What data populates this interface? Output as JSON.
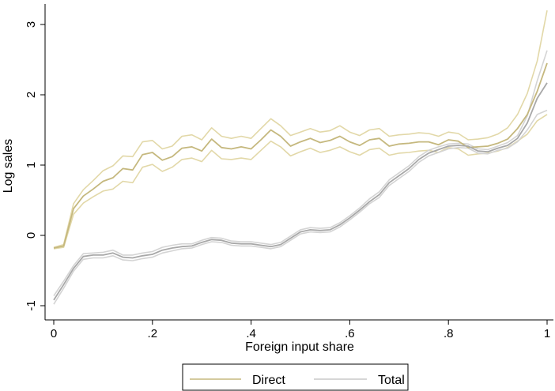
{
  "chart_data": {
    "type": "line",
    "title": "",
    "xlabel": "Foreign input share",
    "ylabel": "Log sales",
    "xlim": [
      0,
      1
    ],
    "ylim": [
      -1.15,
      3.3
    ],
    "grid": false,
    "legend_position": "bottom",
    "x_ticks": [
      {
        "value": 0,
        "label": "0"
      },
      {
        "value": 0.2,
        "label": ".2"
      },
      {
        "value": 0.4,
        "label": ".4"
      },
      {
        "value": 0.6,
        "label": ".6"
      },
      {
        "value": 0.8,
        "label": ".8"
      },
      {
        "value": 1,
        "label": "1"
      }
    ],
    "y_ticks": [
      {
        "value": -1,
        "label": "-1"
      },
      {
        "value": 0,
        "label": "0"
      },
      {
        "value": 1,
        "label": "1"
      },
      {
        "value": 2,
        "label": "2"
      },
      {
        "value": 3,
        "label": "3"
      }
    ],
    "x": [
      0,
      0.02,
      0.04,
      0.06,
      0.08,
      0.1,
      0.12,
      0.14,
      0.16,
      0.18,
      0.2,
      0.22,
      0.24,
      0.26,
      0.28,
      0.3,
      0.32,
      0.34,
      0.36,
      0.38,
      0.4,
      0.42,
      0.44,
      0.46,
      0.48,
      0.5,
      0.52,
      0.54,
      0.56,
      0.58,
      0.6,
      0.62,
      0.64,
      0.66,
      0.68,
      0.7,
      0.72,
      0.74,
      0.76,
      0.78,
      0.8,
      0.82,
      0.84,
      0.86,
      0.88,
      0.9,
      0.92,
      0.94,
      0.96,
      0.98,
      1.0
    ],
    "series": [
      {
        "name": "Direct",
        "color": "#c5b87e",
        "band_color": "#e2d8a8",
        "values": [
          -0.18,
          -0.15,
          0.38,
          0.56,
          0.66,
          0.77,
          0.82,
          0.95,
          0.93,
          1.15,
          1.18,
          1.07,
          1.12,
          1.24,
          1.26,
          1.2,
          1.37,
          1.25,
          1.23,
          1.26,
          1.23,
          1.36,
          1.5,
          1.41,
          1.27,
          1.33,
          1.38,
          1.32,
          1.35,
          1.41,
          1.33,
          1.28,
          1.36,
          1.38,
          1.27,
          1.3,
          1.31,
          1.33,
          1.33,
          1.29,
          1.36,
          1.34,
          1.25,
          1.26,
          1.27,
          1.31,
          1.37,
          1.52,
          1.72,
          2.05,
          2.45
        ],
        "upper": [
          -0.17,
          -0.13,
          0.45,
          0.65,
          0.78,
          0.92,
          0.99,
          1.13,
          1.12,
          1.33,
          1.35,
          1.23,
          1.27,
          1.41,
          1.43,
          1.36,
          1.53,
          1.41,
          1.38,
          1.41,
          1.38,
          1.52,
          1.66,
          1.56,
          1.42,
          1.47,
          1.52,
          1.47,
          1.49,
          1.56,
          1.47,
          1.42,
          1.5,
          1.52,
          1.41,
          1.43,
          1.44,
          1.46,
          1.45,
          1.41,
          1.47,
          1.45,
          1.36,
          1.37,
          1.39,
          1.44,
          1.53,
          1.72,
          2.02,
          2.48,
          3.2
        ],
        "lower": [
          -0.19,
          -0.17,
          0.3,
          0.46,
          0.55,
          0.63,
          0.66,
          0.77,
          0.75,
          0.97,
          1.01,
          0.91,
          0.97,
          1.08,
          1.1,
          1.05,
          1.21,
          1.09,
          1.08,
          1.1,
          1.08,
          1.21,
          1.34,
          1.26,
          1.13,
          1.19,
          1.24,
          1.18,
          1.21,
          1.26,
          1.19,
          1.14,
          1.22,
          1.24,
          1.14,
          1.17,
          1.18,
          1.2,
          1.21,
          1.18,
          1.25,
          1.23,
          1.14,
          1.16,
          1.17,
          1.2,
          1.25,
          1.34,
          1.44,
          1.63,
          1.72
        ]
      },
      {
        "name": "Total",
        "color": "#a8a8a8",
        "band_color": "#d4d4d4",
        "values": [
          -0.92,
          -0.7,
          -0.47,
          -0.3,
          -0.28,
          -0.28,
          -0.25,
          -0.31,
          -0.32,
          -0.29,
          -0.27,
          -0.21,
          -0.18,
          -0.16,
          -0.15,
          -0.1,
          -0.06,
          -0.07,
          -0.11,
          -0.12,
          -0.12,
          -0.14,
          -0.16,
          -0.13,
          -0.04,
          0.05,
          0.08,
          0.07,
          0.08,
          0.15,
          0.25,
          0.36,
          0.48,
          0.58,
          0.75,
          0.85,
          0.95,
          1.08,
          1.17,
          1.22,
          1.27,
          1.28,
          1.27,
          1.2,
          1.19,
          1.24,
          1.28,
          1.38,
          1.6,
          1.95,
          2.17
        ],
        "upper": [
          -0.86,
          -0.65,
          -0.43,
          -0.26,
          -0.25,
          -0.24,
          -0.21,
          -0.28,
          -0.28,
          -0.25,
          -0.23,
          -0.17,
          -0.14,
          -0.12,
          -0.12,
          -0.07,
          -0.03,
          -0.04,
          -0.08,
          -0.09,
          -0.09,
          -0.11,
          -0.13,
          -0.1,
          -0.01,
          0.08,
          0.11,
          0.1,
          0.11,
          0.18,
          0.28,
          0.39,
          0.52,
          0.62,
          0.79,
          0.89,
          0.99,
          1.12,
          1.21,
          1.26,
          1.3,
          1.31,
          1.3,
          1.23,
          1.22,
          1.27,
          1.32,
          1.42,
          1.7,
          2.2,
          2.63
        ],
        "lower": [
          -0.98,
          -0.75,
          -0.51,
          -0.34,
          -0.32,
          -0.32,
          -0.29,
          -0.35,
          -0.36,
          -0.33,
          -0.31,
          -0.25,
          -0.22,
          -0.19,
          -0.18,
          -0.13,
          -0.09,
          -0.1,
          -0.14,
          -0.15,
          -0.15,
          -0.17,
          -0.19,
          -0.16,
          -0.07,
          0.02,
          0.05,
          0.04,
          0.05,
          0.12,
          0.22,
          0.33,
          0.45,
          0.54,
          0.71,
          0.81,
          0.91,
          1.04,
          1.13,
          1.18,
          1.23,
          1.25,
          1.24,
          1.17,
          1.16,
          1.21,
          1.24,
          1.33,
          1.5,
          1.72,
          1.78
        ]
      }
    ]
  },
  "legend": {
    "items": [
      {
        "label": "Direct",
        "color": "#c5b87e"
      },
      {
        "label": "Total",
        "color": "#c9c9c9"
      }
    ]
  }
}
